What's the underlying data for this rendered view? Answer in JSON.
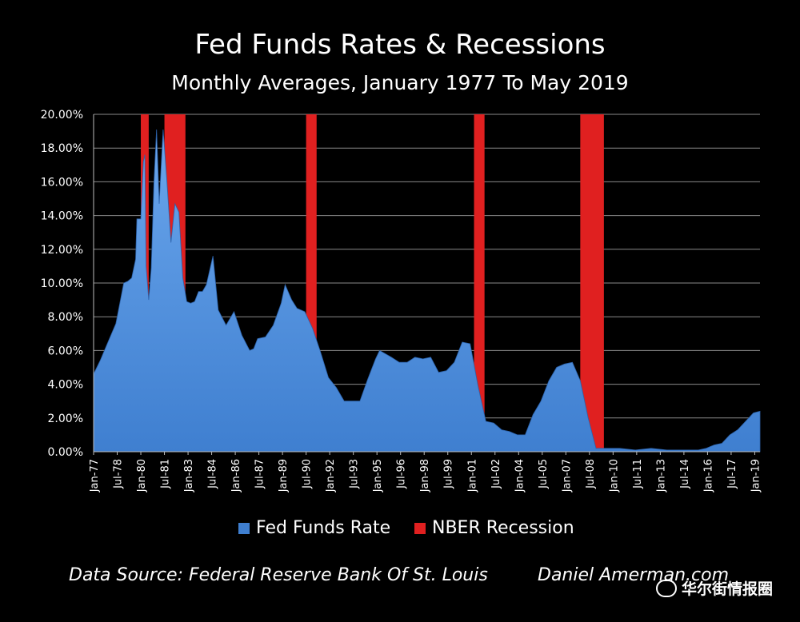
{
  "chart_data": {
    "type": "area",
    "title": "Fed Funds Rates & Recessions",
    "subtitle": "Monthly Averages, January 1977 To May 2019",
    "y_ticks": [
      "0.00%",
      "2.00%",
      "4.00%",
      "6.00%",
      "8.00%",
      "10.00%",
      "12.00%",
      "14.00%",
      "16.00%",
      "18.00%",
      "20.00%"
    ],
    "ylim": [
      0,
      20
    ],
    "x_range": [
      "Jan-77",
      "May-19"
    ],
    "x_ticks": [
      "Jan-77",
      "Jul-78",
      "Jan-80",
      "Jul-81",
      "Jan-83",
      "Jul-84",
      "Jan-86",
      "Jul-87",
      "Jan-89",
      "Jul-90",
      "Jan-92",
      "Jul-93",
      "Jan-95",
      "Jul-96",
      "Jan-98",
      "Jul-99",
      "Jan-01",
      "Jul-02",
      "Jan-04",
      "Jul-05",
      "Jan-07",
      "Jul-08",
      "Jan-10",
      "Jul-11",
      "Jan-13",
      "Jul-14",
      "Jan-16",
      "Jul-17",
      "Jan-19"
    ],
    "grid": true,
    "legend_position": "bottom",
    "series": [
      {
        "name": "Fed Funds Rate",
        "color": "#3f7fd0",
        "points": [
          [
            "1977-01",
            4.6
          ],
          [
            "1977-06",
            5.4
          ],
          [
            "1977-12",
            6.5
          ],
          [
            "1978-06",
            7.6
          ],
          [
            "1978-12",
            10.0
          ],
          [
            "1979-03",
            10.1
          ],
          [
            "1979-06",
            10.3
          ],
          [
            "1979-09",
            11.4
          ],
          [
            "1979-10",
            13.8
          ],
          [
            "1980-01",
            13.8
          ],
          [
            "1980-03",
            17.2
          ],
          [
            "1980-04",
            17.6
          ],
          [
            "1980-05",
            11.0
          ],
          [
            "1980-07",
            9.0
          ],
          [
            "1980-09",
            10.9
          ],
          [
            "1980-11",
            15.9
          ],
          [
            "1981-01",
            19.1
          ],
          [
            "1981-03",
            14.7
          ],
          [
            "1981-06",
            19.1
          ],
          [
            "1981-09",
            15.9
          ],
          [
            "1981-12",
            12.4
          ],
          [
            "1982-03",
            14.7
          ],
          [
            "1982-06",
            14.2
          ],
          [
            "1982-09",
            10.3
          ],
          [
            "1982-12",
            8.9
          ],
          [
            "1983-03",
            8.8
          ],
          [
            "1983-06",
            8.9
          ],
          [
            "1983-09",
            9.5
          ],
          [
            "1983-12",
            9.5
          ],
          [
            "1984-03",
            9.9
          ],
          [
            "1984-08",
            11.6
          ],
          [
            "1984-12",
            8.4
          ],
          [
            "1985-06",
            7.5
          ],
          [
            "1985-12",
            8.3
          ],
          [
            "1986-06",
            6.9
          ],
          [
            "1986-12",
            6.0
          ],
          [
            "1987-03",
            6.1
          ],
          [
            "1987-06",
            6.7
          ],
          [
            "1987-12",
            6.8
          ],
          [
            "1988-06",
            7.5
          ],
          [
            "1988-12",
            8.8
          ],
          [
            "1989-03",
            9.9
          ],
          [
            "1989-08",
            9.0
          ],
          [
            "1989-12",
            8.5
          ],
          [
            "1990-06",
            8.3
          ],
          [
            "1990-12",
            7.3
          ],
          [
            "1991-06",
            5.9
          ],
          [
            "1991-12",
            4.4
          ],
          [
            "1992-06",
            3.8
          ],
          [
            "1992-12",
            3.0
          ],
          [
            "1993-06",
            3.0
          ],
          [
            "1993-12",
            3.0
          ],
          [
            "1994-06",
            4.3
          ],
          [
            "1994-12",
            5.5
          ],
          [
            "1995-03",
            6.0
          ],
          [
            "1995-12",
            5.6
          ],
          [
            "1996-06",
            5.3
          ],
          [
            "1996-12",
            5.3
          ],
          [
            "1997-06",
            5.6
          ],
          [
            "1997-12",
            5.5
          ],
          [
            "1998-06",
            5.6
          ],
          [
            "1998-12",
            4.7
          ],
          [
            "1999-06",
            4.8
          ],
          [
            "1999-12",
            5.3
          ],
          [
            "2000-06",
            6.5
          ],
          [
            "2000-12",
            6.4
          ],
          [
            "2001-06",
            3.9
          ],
          [
            "2001-12",
            1.8
          ],
          [
            "2002-06",
            1.7
          ],
          [
            "2002-12",
            1.3
          ],
          [
            "2003-06",
            1.2
          ],
          [
            "2003-12",
            1.0
          ],
          [
            "2004-06",
            1.0
          ],
          [
            "2004-12",
            2.2
          ],
          [
            "2005-06",
            3.0
          ],
          [
            "2005-12",
            4.2
          ],
          [
            "2006-06",
            5.0
          ],
          [
            "2006-12",
            5.2
          ],
          [
            "2007-06",
            5.3
          ],
          [
            "2007-12",
            4.2
          ],
          [
            "2008-06",
            2.0
          ],
          [
            "2008-12",
            0.2
          ],
          [
            "2009-06",
            0.2
          ],
          [
            "2010-06",
            0.2
          ],
          [
            "2011-06",
            0.1
          ],
          [
            "2012-06",
            0.2
          ],
          [
            "2013-06",
            0.1
          ],
          [
            "2014-06",
            0.1
          ],
          [
            "2015-06",
            0.1
          ],
          [
            "2015-12",
            0.2
          ],
          [
            "2016-06",
            0.4
          ],
          [
            "2016-12",
            0.5
          ],
          [
            "2017-06",
            1.0
          ],
          [
            "2017-12",
            1.3
          ],
          [
            "2018-06",
            1.8
          ],
          [
            "2018-12",
            2.3
          ],
          [
            "2019-05",
            2.4
          ]
        ]
      },
      {
        "name": "NBER Recession",
        "color": "#e02020",
        "periods": [
          [
            "1980-01",
            "1980-07"
          ],
          [
            "1981-07",
            "1982-11"
          ],
          [
            "1990-07",
            "1991-03"
          ],
          [
            "2001-03",
            "2001-11"
          ],
          [
            "2007-12",
            "2009-06"
          ]
        ]
      }
    ]
  },
  "footer": {
    "source": "Data Source:  Federal Reserve Bank Of St. Louis",
    "author": "Daniel Amerman.com",
    "watermark": "华尔街情报圈"
  }
}
